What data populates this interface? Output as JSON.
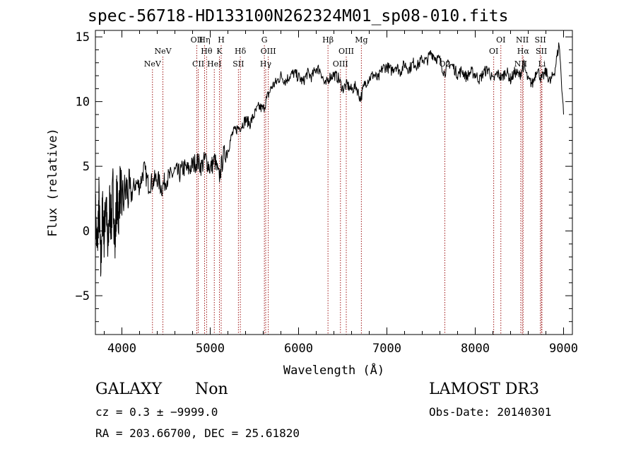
{
  "chart_data": {
    "type": "line",
    "title": "spec-56718-HD133100N262324M01_sp08-010.fits",
    "xlabel": "Wavelength (Å)",
    "ylabel": "Flux (relative)",
    "xlim": [
      3700,
      9100
    ],
    "ylim": [
      -8,
      15.5
    ],
    "xticks": [
      4000,
      5000,
      6000,
      7000,
      8000,
      9000
    ],
    "xtick_labels": [
      "4000",
      "5000",
      "6000",
      "7000",
      "8000",
      "9000"
    ],
    "yticks": [
      -5,
      0,
      5,
      10,
      15
    ],
    "ytick_labels": [
      "−5",
      "0",
      "5",
      "10",
      "15"
    ],
    "series": [
      {
        "name": "flux",
        "x": [
          3700,
          3720,
          3740,
          3760,
          3780,
          3800,
          3820,
          3840,
          3860,
          3880,
          3900,
          3920,
          3940,
          3960,
          3980,
          4000,
          4050,
          4100,
          4150,
          4200,
          4250,
          4300,
          4350,
          4400,
          4450,
          4500,
          4550,
          4600,
          4650,
          4700,
          4750,
          4800,
          4850,
          4900,
          4950,
          5000,
          5050,
          5100,
          5150,
          5200,
          5250,
          5300,
          5350,
          5400,
          5450,
          5500,
          5550,
          5600,
          5650,
          5700,
          5750,
          5800,
          5850,
          5900,
          5950,
          6000,
          6050,
          6100,
          6150,
          6200,
          6250,
          6300,
          6350,
          6400,
          6450,
          6500,
          6550,
          6600,
          6650,
          6700,
          6750,
          6800,
          6850,
          6900,
          6950,
          7000,
          7050,
          7100,
          7150,
          7200,
          7250,
          7300,
          7350,
          7400,
          7450,
          7500,
          7550,
          7600,
          7650,
          7700,
          7750,
          7800,
          7850,
          7900,
          7950,
          8000,
          8050,
          8100,
          8150,
          8200,
          8250,
          8300,
          8350,
          8400,
          8450,
          8500,
          8550,
          8600,
          8650,
          8700,
          8750,
          8800,
          8850,
          8900,
          8950,
          9000
        ],
        "y": [
          1.5,
          -1.8,
          2.5,
          -3,
          1.8,
          -0.5,
          3,
          -2,
          2.2,
          0.5,
          3.5,
          -1.5,
          2.8,
          1,
          3.6,
          2.2,
          3.2,
          2.6,
          3.7,
          3.5,
          4.8,
          3.6,
          3.8,
          4.1,
          3.3,
          4.0,
          4.2,
          4.6,
          4.4,
          4.9,
          4.7,
          5.1,
          5.4,
          5.0,
          5.6,
          4.8,
          5.5,
          4.1,
          5.8,
          6.3,
          7.5,
          7.9,
          8.1,
          8.6,
          8.3,
          9.0,
          9.6,
          9.4,
          10.4,
          11.2,
          11.5,
          12.0,
          11.6,
          12.0,
          12.2,
          11.9,
          11.5,
          12.2,
          11.9,
          12.6,
          12.4,
          11.2,
          11.9,
          12.1,
          11.8,
          11.0,
          11.3,
          10.9,
          11.2,
          10.2,
          11.4,
          11.8,
          12.1,
          11.7,
          12.6,
          12.7,
          12.4,
          12.8,
          12.3,
          12.9,
          12.5,
          13.0,
          12.8,
          13.3,
          13.1,
          13.8,
          13.4,
          13.2,
          12.2,
          13.0,
          12.7,
          12.1,
          12.4,
          11.9,
          12.3,
          12.1,
          11.7,
          12.3,
          12.5,
          11.6,
          12.2,
          11.8,
          12.4,
          11.7,
          12.3,
          12.0,
          12.8,
          11.6,
          11.4,
          12.6,
          11.7,
          12.3,
          11.5,
          12.4,
          14.5,
          9.0
        ]
      }
    ],
    "line_markers": [
      {
        "label": "NeV",
        "x": 4346,
        "row": 3
      },
      {
        "label": "NeV",
        "x": 4464,
        "row": 2
      },
      {
        "label": "OII",
        "x": 4848,
        "row": 1
      },
      {
        "label": "CII",
        "x": 4864,
        "row": 3
      },
      {
        "label": "Hη",
        "x": 4936,
        "row": 1
      },
      {
        "label": "Hθ",
        "x": 4959,
        "row": 2
      },
      {
        "label": "HeI",
        "x": 5046,
        "row": 3
      },
      {
        "label": "H",
        "x": 5124,
        "row": 1
      },
      {
        "label": "K",
        "x": 5104,
        "row": 2
      },
      {
        "label": "Hδ",
        "x": 5341,
        "row": 2
      },
      {
        "label": "SII",
        "x": 5319,
        "row": 3
      },
      {
        "label": "G",
        "x": 5613,
        "row": 1
      },
      {
        "label": "OIII",
        "x": 5657,
        "row": 2
      },
      {
        "label": "Hγ",
        "x": 5628,
        "row": 3
      },
      {
        "label": "Hβ",
        "x": 6333,
        "row": 1
      },
      {
        "label": "OIII",
        "x": 6540,
        "row": 2
      },
      {
        "label": "OIII",
        "x": 6474,
        "row": 3
      },
      {
        "label": "Mg",
        "x": 6711,
        "row": 1
      },
      {
        "label": "O2",
        "x": 7656,
        "row": 3
      },
      {
        "label": "OI",
        "x": 8290,
        "row": 1
      },
      {
        "label": "OI",
        "x": 8209,
        "row": 2
      },
      {
        "label": "NII",
        "x": 8533,
        "row": 1
      },
      {
        "label": "Hα",
        "x": 8542,
        "row": 2
      },
      {
        "label": "NII",
        "x": 8515,
        "row": 3
      },
      {
        "label": "SII",
        "x": 8737,
        "row": 1
      },
      {
        "label": "SII",
        "x": 8749,
        "row": 2
      },
      {
        "label": "Li",
        "x": 8755,
        "row": 3
      }
    ]
  },
  "info": {
    "object_class": "GALAXY",
    "subclass": "Non",
    "survey": "LAMOST DR3",
    "cz_line": "cz = 0.3 ± −9999.0",
    "obs_date_line": "Obs-Date: 20140301",
    "coords_line": "RA = 203.66700, DEC =  25.61820"
  }
}
